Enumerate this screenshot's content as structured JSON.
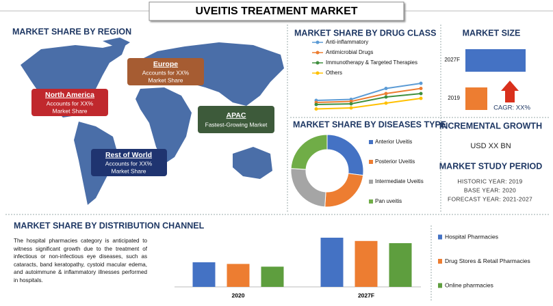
{
  "title": "UVEITIS TREATMENT MARKET",
  "region": {
    "heading": "MARKET SHARE BY REGION",
    "boxes": [
      {
        "name": "North America",
        "lines": [
          "Accounts for XX%",
          "Market Share"
        ]
      },
      {
        "name": "Europe",
        "lines": [
          "Accounts for XX%",
          "Market Share"
        ]
      },
      {
        "name": "APAC",
        "lines": [
          "Fastest-Growing Market"
        ]
      },
      {
        "name": "Rest of World",
        "lines": [
          "Accounts for XX%",
          "Market Share"
        ]
      }
    ]
  },
  "cagr": "CAGR: XX%",
  "incremental": {
    "heading": "INCREMENTAL GROWTH",
    "value": "USD XX BN"
  },
  "study": {
    "heading": "MARKET STUDY PERIOD",
    "lines": [
      "HISTORIC YEAR: 2019",
      "BASE YEAR: 2020",
      "FORECAST YEAR: 2021-2027"
    ]
  },
  "distribution_text": "The hospital pharmacies category is anticipated to witness significant growth due to the treatment of infectious or non-infectious eye diseases, such as cataracts, band keratopathy, cystoid macular edema, and autoimmune & inflammatory illnesses performed in hospitals.",
  "chart_data": [
    {
      "type": "line",
      "title": "MARKET SHARE BY DRUG CLASS",
      "categories": [
        null,
        null,
        null,
        null
      ],
      "ylim": [
        0,
        10
      ],
      "series": [
        {
          "name": "Anti-inflammatory",
          "color": "#5b9bd5",
          "values": [
            3,
            3.3,
            6.5,
            8
          ]
        },
        {
          "name": "Antimicrobial Drugs",
          "color": "#ed7d31",
          "values": [
            2.4,
            2.7,
            5,
            6.5
          ]
        },
        {
          "name": "Immunotherapy & Targeted Therapies",
          "color": "#3f8f3f",
          "values": [
            1.8,
            2,
            4,
            5
          ]
        },
        {
          "name": "Others",
          "color": "#ffc000",
          "values": [
            0.5,
            0.8,
            2.2,
            3.6
          ]
        }
      ]
    },
    {
      "type": "donut",
      "title": "MARKET SHARE BY DISEASES TYPE",
      "categories": [
        "Anterior Uveitis",
        "Posterior Uveitis",
        "Intermediate Uveitis",
        "Pan uveitis"
      ],
      "values": [
        27,
        24,
        25,
        24
      ],
      "colors": [
        "#4472c4",
        "#ed7d31",
        "#a5a5a5",
        "#70ad47"
      ]
    },
    {
      "type": "hbar",
      "title": "MARKET SIZE",
      "categories": [
        "2027F",
        "2019"
      ],
      "values": [
        88,
        32
      ],
      "xlim": [
        0,
        100
      ],
      "colors": [
        "#4472c4",
        "#ed7d31"
      ]
    },
    {
      "type": "bar",
      "title": "MARKET SHARE BY DISTRIBUTION CHANNEL",
      "categories": [
        "2020",
        "2027F"
      ],
      "ylim": [
        0,
        100
      ],
      "series": [
        {
          "name": "Hospital Pharmacies",
          "color": "#4472c4",
          "values": [
            45,
            90
          ]
        },
        {
          "name": "Drug Stores & Retail Pharmacies",
          "color": "#ed7d31",
          "values": [
            42,
            84
          ]
        },
        {
          "name": "Online pharmacies",
          "color": "#5e9e3e",
          "values": [
            37,
            80
          ]
        }
      ]
    }
  ]
}
